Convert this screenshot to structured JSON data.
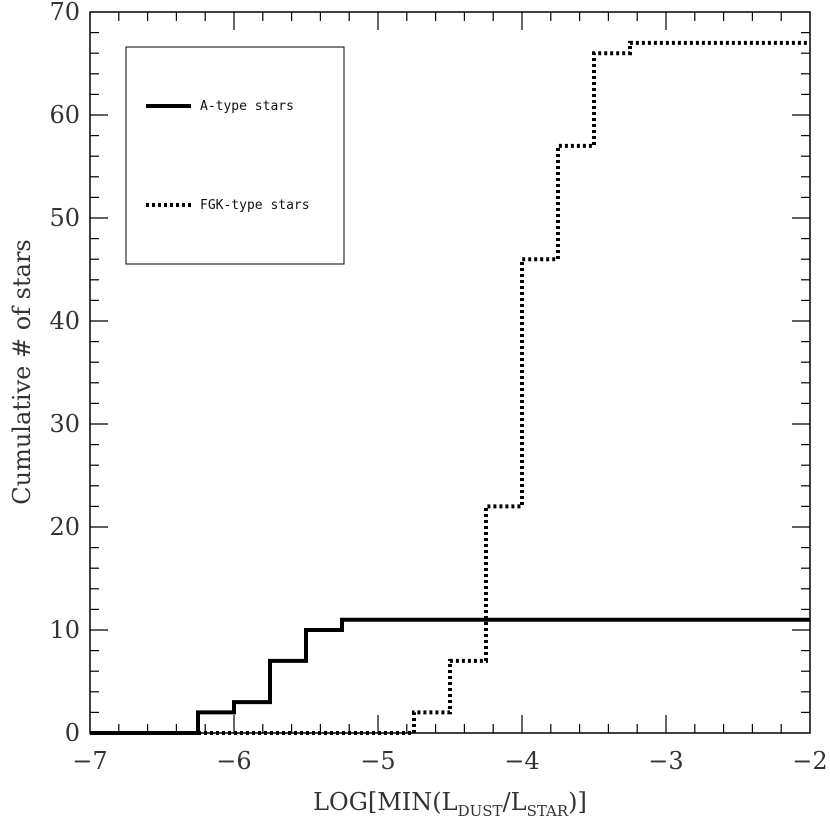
{
  "chart_data": {
    "type": "line",
    "xlabel": "LOG[MIN(L_DUST/L_STAR)]",
    "xlabel_parts": {
      "prefix": "LOG[MIN(L",
      "sub1": "DUST",
      "mid": "/L",
      "sub2": "STAR",
      "suffix": ")]"
    },
    "ylabel": "Cumulative # of stars",
    "xlim": [
      -7,
      -2
    ],
    "ylim": [
      0,
      70
    ],
    "x_ticks": [
      -7,
      -6,
      -5,
      -4,
      -3,
      -2
    ],
    "y_ticks": [
      0,
      10,
      20,
      30,
      40,
      50,
      60,
      70
    ],
    "x_tick_labels": [
      "−7",
      "−6",
      "−5",
      "−4",
      "−3",
      "−2"
    ],
    "y_tick_labels": [
      "0",
      "10",
      "20",
      "30",
      "40",
      "50",
      "60",
      "70"
    ],
    "grid": false,
    "legend_position": "top-left",
    "series": [
      {
        "name": "A-type stars",
        "style": "solid",
        "color": "#000000",
        "x": [
          -7,
          -6.25,
          -6.25,
          -6.0,
          -6.0,
          -5.75,
          -5.75,
          -5.5,
          -5.5,
          -5.25,
          -5.25,
          -2
        ],
        "y": [
          0,
          0,
          2,
          2,
          3,
          3,
          7,
          7,
          10,
          10,
          11,
          11
        ]
      },
      {
        "name": "FGK-type stars",
        "style": "dotted",
        "color": "#000000",
        "x": [
          -7,
          -4.75,
          -4.75,
          -4.5,
          -4.5,
          -4.25,
          -4.25,
          -4.0,
          -4.0,
          -3.75,
          -3.75,
          -3.5,
          -3.5,
          -3.25,
          -3.25,
          -2
        ],
        "y": [
          0,
          0,
          2,
          2,
          7,
          7,
          22,
          22,
          46,
          46,
          57,
          57,
          66,
          66,
          67,
          67
        ]
      }
    ]
  }
}
